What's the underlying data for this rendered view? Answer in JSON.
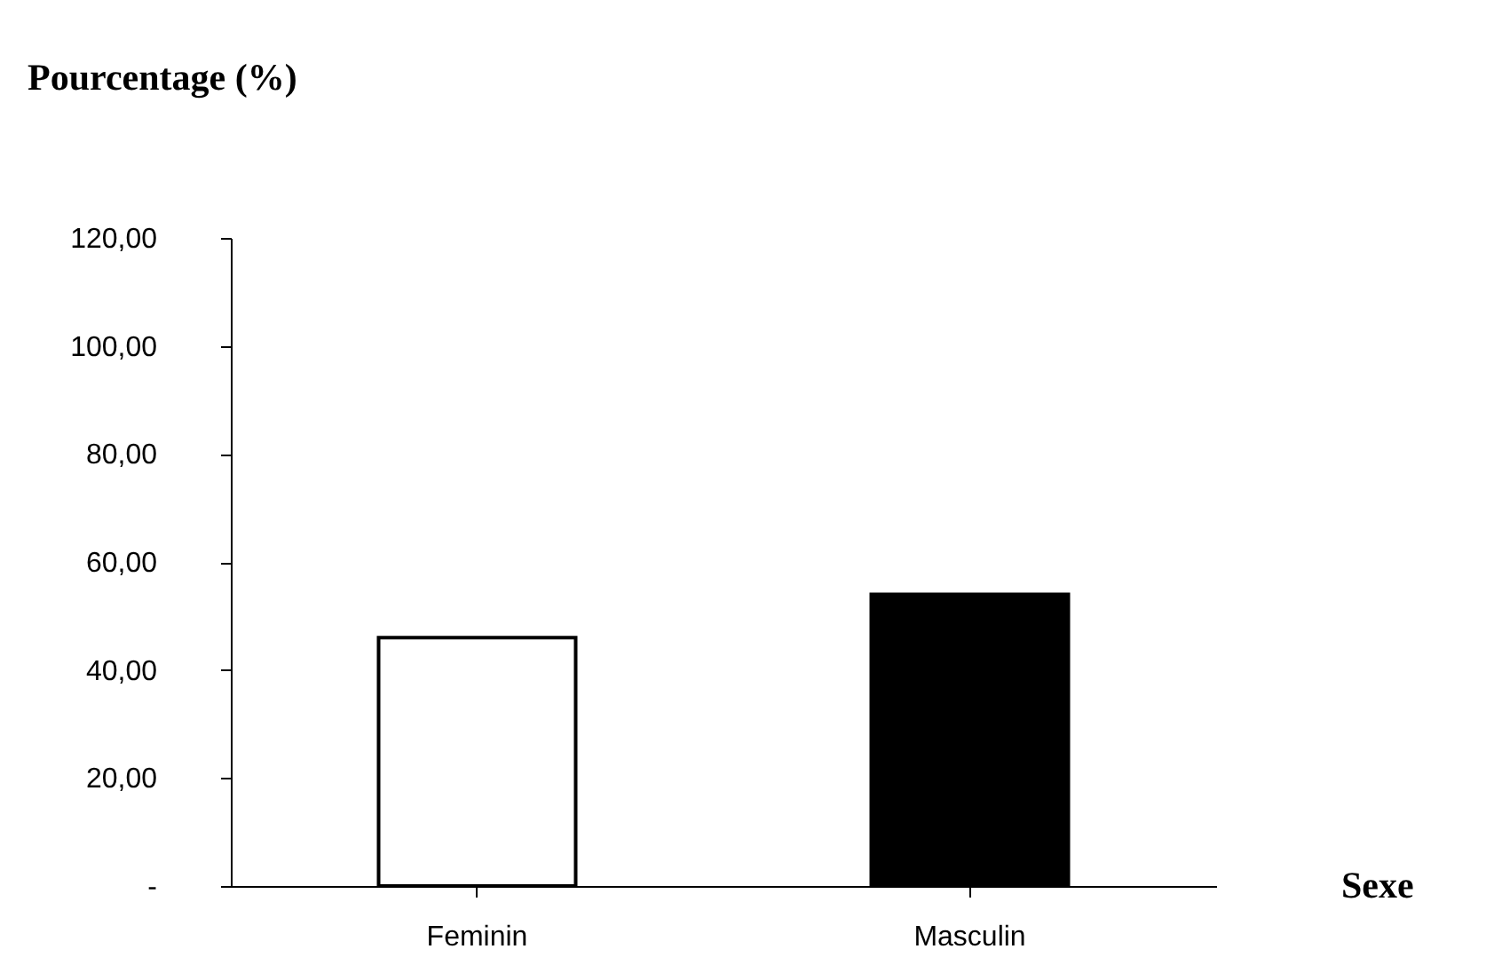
{
  "chart_data": {
    "type": "bar",
    "ylabel": "Pourcentage (%)",
    "xlabel": "Sexe",
    "categories": [
      "Feminin",
      "Masculin"
    ],
    "values": [
      46,
      54
    ],
    "colors": [
      "#ffffff",
      "#000000"
    ],
    "ylim": [
      0,
      120
    ],
    "yticks": [
      {
        "value": 0,
        "label": "-"
      },
      {
        "value": 20,
        "label": "20,00"
      },
      {
        "value": 40,
        "label": "40,00"
      },
      {
        "value": 60,
        "label": "60,00"
      },
      {
        "value": 80,
        "label": "80,00"
      },
      {
        "value": 100,
        "label": "100,00"
      },
      {
        "value": 120,
        "label": "120,00"
      }
    ],
    "grid": false,
    "legend": false
  }
}
